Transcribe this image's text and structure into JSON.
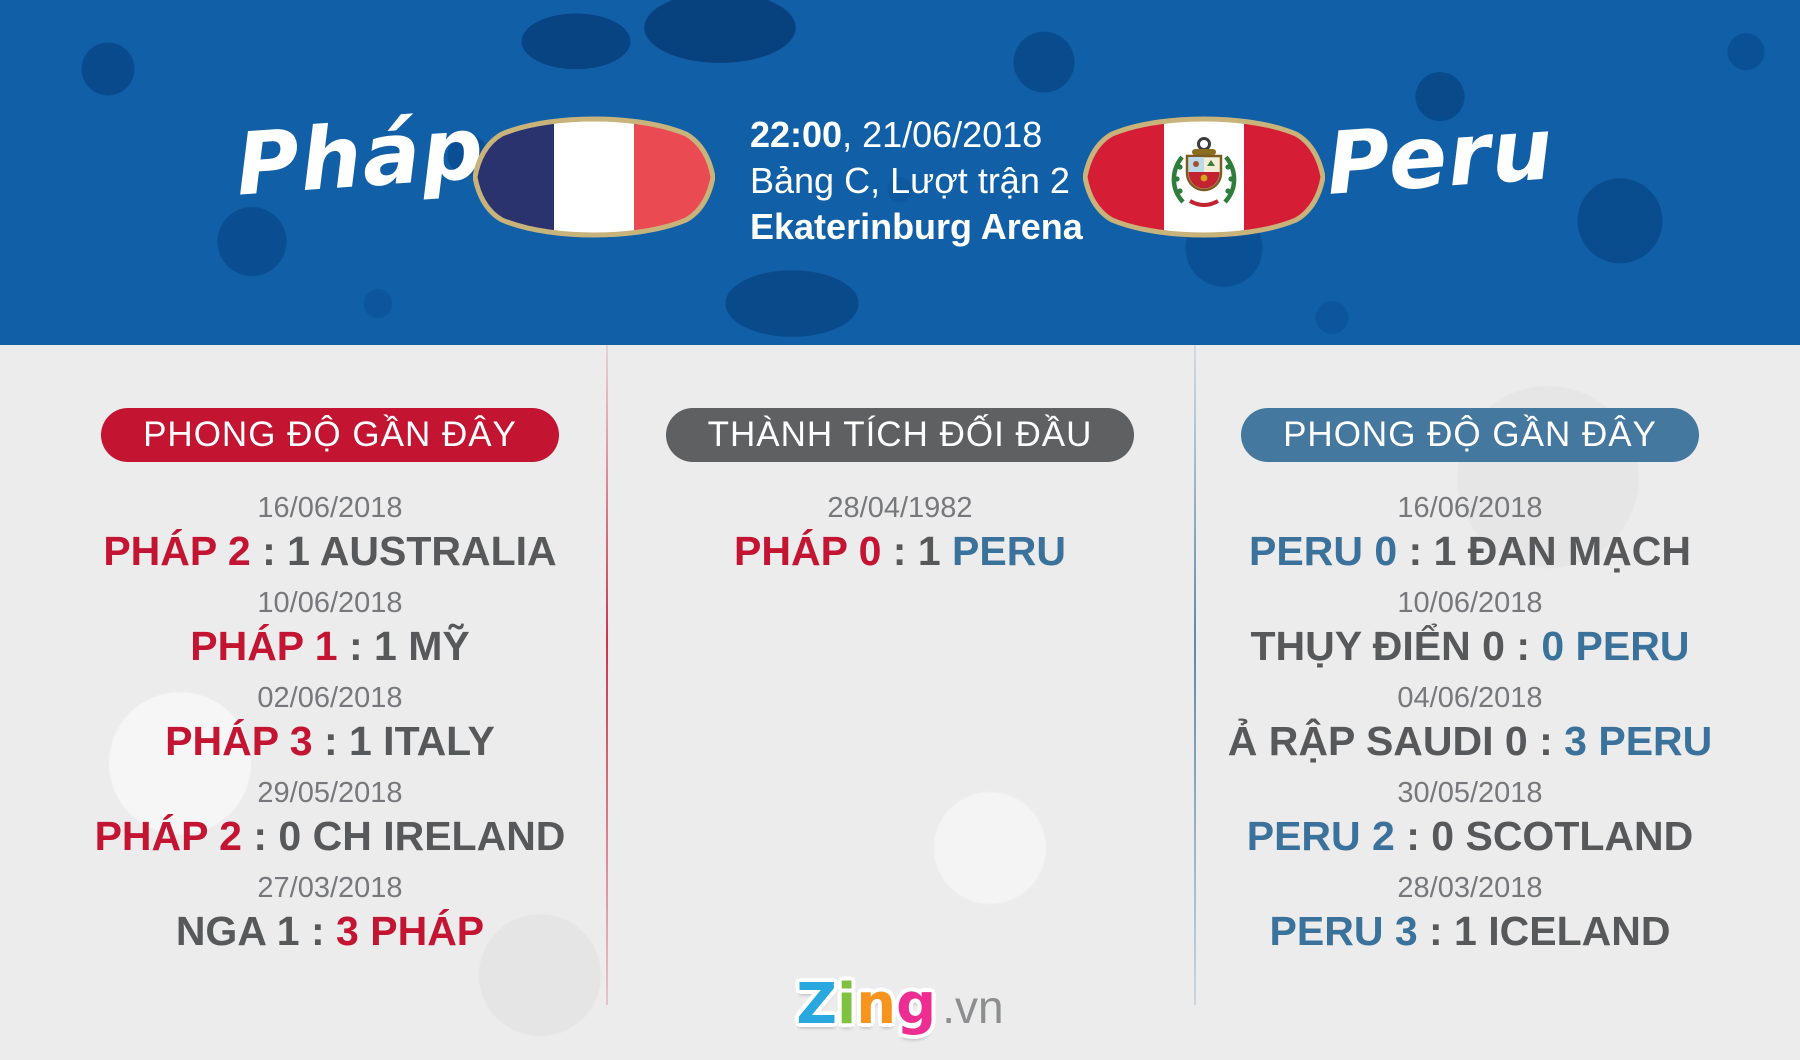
{
  "banner": {
    "home_team": "Pháp",
    "away_team": "Peru",
    "time": "22:00",
    "date_rest": ", 21/06/2018",
    "group_line": "Bảng C, Lượt trận 2",
    "venue": "Ekaterinburg Arena",
    "flags": {
      "home": "france-flag-shield",
      "away": "peru-flag-shield"
    }
  },
  "columns": {
    "left": {
      "header": "PHONG ĐỘ GẦN ĐÂY",
      "matches": [
        {
          "date": "16/06/2018",
          "segments": [
            {
              "text": "PHÁP 2",
              "color": "red"
            },
            {
              "text": " : 1 AUSTRALIA",
              "color": "gray"
            }
          ]
        },
        {
          "date": "10/06/2018",
          "segments": [
            {
              "text": "PHÁP 1",
              "color": "red"
            },
            {
              "text": " : 1 MỸ",
              "color": "gray"
            }
          ]
        },
        {
          "date": "02/06/2018",
          "segments": [
            {
              "text": "PHÁP 3",
              "color": "red"
            },
            {
              "text": " : 1 ITALY",
              "color": "gray"
            }
          ]
        },
        {
          "date": "29/05/2018",
          "segments": [
            {
              "text": "PHÁP 2",
              "color": "red"
            },
            {
              "text": " : 0 CH IRELAND",
              "color": "gray"
            }
          ]
        },
        {
          "date": "27/03/2018",
          "segments": [
            {
              "text": "NGA 1 : ",
              "color": "gray"
            },
            {
              "text": "3 PHÁP",
              "color": "red"
            }
          ]
        }
      ]
    },
    "middle": {
      "header": "THÀNH TÍCH ĐỐI ĐẦU",
      "matches": [
        {
          "date": "28/04/1982",
          "segments": [
            {
              "text": "PHÁP 0",
              "color": "red"
            },
            {
              "text": " : 1 ",
              "color": "gray"
            },
            {
              "text": "PERU",
              "color": "blue"
            }
          ]
        }
      ]
    },
    "right": {
      "header": "PHONG ĐỘ GẦN ĐÂY",
      "matches": [
        {
          "date": "16/06/2018",
          "segments": [
            {
              "text": "PERU 0",
              "color": "blue"
            },
            {
              "text": " : 1 ĐAN MẠCH",
              "color": "gray"
            }
          ]
        },
        {
          "date": "10/06/2018",
          "segments": [
            {
              "text": "THỤY ĐIỂN 0 : ",
              "color": "gray"
            },
            {
              "text": "0 PERU",
              "color": "blue"
            }
          ]
        },
        {
          "date": "04/06/2018",
          "segments": [
            {
              "text": "Ả RẬP SAUDI 0 : ",
              "color": "gray"
            },
            {
              "text": "3 PERU",
              "color": "blue"
            }
          ]
        },
        {
          "date": "30/05/2018",
          "segments": [
            {
              "text": "PERU 2",
              "color": "blue"
            },
            {
              "text": " : 0 SCOTLAND",
              "color": "gray"
            }
          ]
        },
        {
          "date": "28/03/2018",
          "segments": [
            {
              "text": "PERU 3",
              "color": "blue"
            },
            {
              "text": " : 1 ICELAND",
              "color": "gray"
            }
          ]
        }
      ]
    }
  },
  "footer": {
    "logo_letters": [
      {
        "ch": "Z",
        "color": "#29a8e0"
      },
      {
        "ch": "i",
        "color": "#7fc241"
      },
      {
        "ch": "n",
        "color": "#f7941e"
      },
      {
        "ch": "g",
        "color": "#ed2d92"
      }
    ],
    "logo_suffix": ".vn"
  },
  "colors": {
    "red": "#c31432",
    "blue": "#3b729c",
    "gray": "#57585a",
    "dategray": "#77787b",
    "badgegray": "#5f6062",
    "badgeblue": "#45789e",
    "bannerblue": "#1160a7",
    "pagebg": "#ececec",
    "gold": "#c8b37b",
    "franavy": "#2b336e",
    "frawhite": "#ffffff",
    "frared": "#ea4a52",
    "perured": "#d51e35",
    "peruwhite": "#ffffff"
  }
}
